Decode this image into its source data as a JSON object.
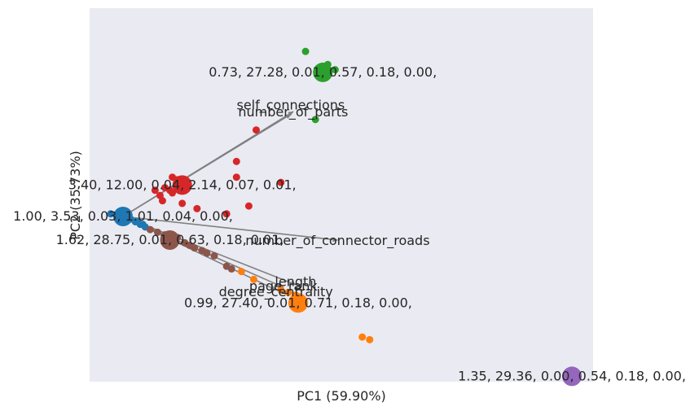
{
  "chart_data": {
    "type": "scatter",
    "title": "",
    "xlabel": "PC1 (59.90%)",
    "ylabel": "PC2 (35.73%)",
    "grid": false,
    "background": "#eaeaf2",
    "loadings": [
      {
        "name": "self_connections",
        "x": 0.68,
        "y": 0.39
      },
      {
        "name": "number_of_parts",
        "x": 0.69,
        "y": 0.4
      },
      {
        "name": "number_of_connector_roads",
        "x": 0.87,
        "y": -0.09
      },
      {
        "name": "length",
        "x": 0.7,
        "y": -0.26
      },
      {
        "name": "page_rank",
        "x": 0.65,
        "y": -0.27
      },
      {
        "name": "degree_centrality",
        "x": 0.62,
        "y": -0.28
      }
    ],
    "clusters": [
      {
        "color": "#2ca02c",
        "centroid": {
          "x": 0.81,
          "y": 0.55
        },
        "centroid_label": "0.73, 27.28, 0.01, 0.57, 0.18, 0.00,",
        "points": [
          [
            0.74,
            0.63
          ],
          [
            0.83,
            0.58
          ],
          [
            0.86,
            0.56
          ],
          [
            0.78,
            0.37
          ]
        ]
      },
      {
        "color": "#d62728",
        "centroid": {
          "x": 0.24,
          "y": 0.12
        },
        "centroid_label": "3.40, 12.00, 0.04, 2.14, 0.07, 0.01,",
        "points": [
          [
            0.54,
            0.33
          ],
          [
            0.46,
            0.21
          ],
          [
            0.46,
            0.15
          ],
          [
            0.64,
            0.13
          ],
          [
            0.2,
            0.15
          ],
          [
            0.22,
            0.14
          ],
          [
            0.17,
            0.11
          ],
          [
            0.19,
            0.1
          ],
          [
            0.2,
            0.09
          ],
          [
            0.26,
            0.11
          ],
          [
            0.24,
            0.05
          ],
          [
            0.3,
            0.03
          ],
          [
            0.51,
            0.04
          ],
          [
            0.42,
            0.01
          ],
          [
            0.13,
            0.1
          ],
          [
            0.15,
            0.08
          ],
          [
            0.16,
            0.06
          ]
        ]
      },
      {
        "color": "#1f77b4",
        "centroid": {
          "x": 0.0,
          "y": 0.0
        },
        "centroid_label": "1.00, 3.53, 0.03, 1.01, 0.04, 0.00,",
        "points": [
          [
            -0.05,
            0.01
          ],
          [
            0.03,
            -0.01
          ],
          [
            0.05,
            -0.02
          ],
          [
            0.07,
            -0.03
          ],
          [
            0.08,
            -0.03
          ],
          [
            0.06,
            -0.02
          ],
          [
            0.09,
            -0.04
          ]
        ]
      },
      {
        "color": "#8c564b",
        "centroid": {
          "x": 0.19,
          "y": -0.09
        },
        "centroid_label": "1.62, 28.75, 0.01, 0.63, 0.18, 0.01,",
        "points": [
          [
            0.22,
            -0.08
          ],
          [
            0.25,
            -0.1
          ],
          [
            0.27,
            -0.11
          ],
          [
            0.29,
            -0.12
          ],
          [
            0.32,
            -0.13
          ],
          [
            0.34,
            -0.14
          ],
          [
            0.37,
            -0.15
          ],
          [
            0.42,
            -0.19
          ],
          [
            0.44,
            -0.2
          ],
          [
            0.11,
            -0.05
          ],
          [
            0.14,
            -0.06
          ],
          [
            0.17,
            -0.07
          ]
        ]
      },
      {
        "color": "#ff7f0e",
        "centroid": {
          "x": 0.71,
          "y": -0.33
        },
        "centroid_label": "0.99, 27.40, 0.01, 0.71, 0.18, 0.00,",
        "points": [
          [
            0.48,
            -0.21
          ],
          [
            0.53,
            -0.24
          ],
          [
            0.64,
            -0.28
          ],
          [
            0.67,
            -0.29
          ],
          [
            0.7,
            -0.3
          ],
          [
            0.97,
            -0.46
          ],
          [
            1.0,
            -0.47
          ]
        ]
      },
      {
        "color": "#9467bd",
        "centroid": {
          "x": 1.82,
          "y": -0.61
        },
        "centroid_label": "1.35, 29.36, 0.00, 0.54, 0.18, 0.00,",
        "points": []
      }
    ]
  }
}
